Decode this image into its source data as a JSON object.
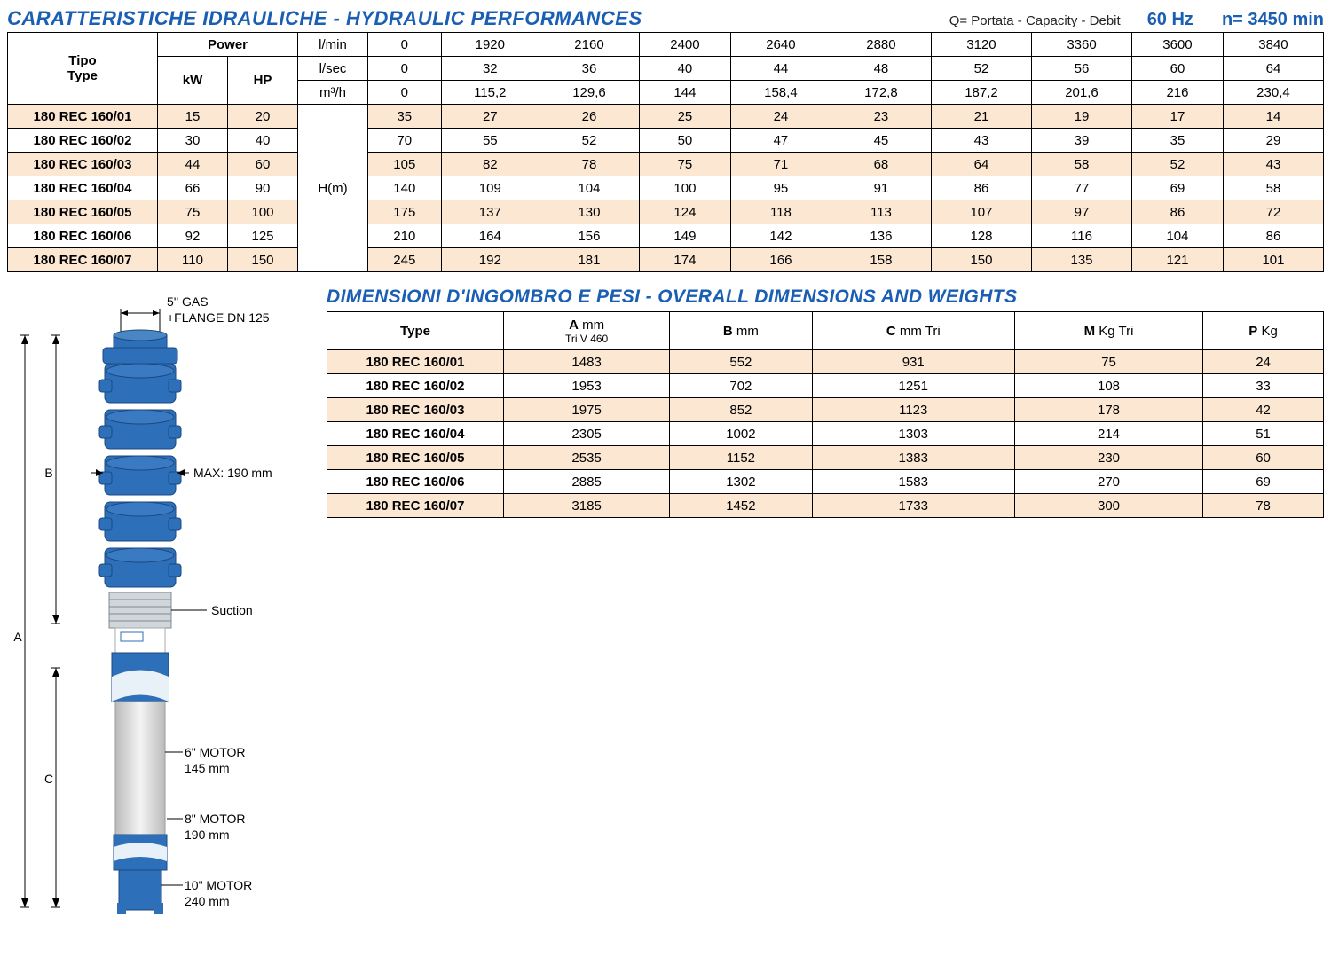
{
  "colors": {
    "accent": "#1a5fb4",
    "row_alt": "#fbe7d2",
    "border": "#000000",
    "pump_body": "#2d6fb8",
    "pump_light": "#e8f0f8",
    "pump_metal": "#d9d9d9"
  },
  "header1": {
    "title": "CARATTERISTICHE IDRAULICHE - HYDRAULIC PERFORMANCES",
    "q_note": "Q= Portata - Capacity - Debit",
    "hz": "60 Hz",
    "rpm": "n= 3450 min"
  },
  "hydr_table": {
    "type_hdr_it": "Tipo",
    "type_hdr_en": "Type",
    "power_hdr": "Power",
    "kw_hdr": "kW",
    "hp_hdr": "HP",
    "unit_rows": [
      {
        "label": "l/min",
        "values": [
          "0",
          "1920",
          "2160",
          "2400",
          "2640",
          "2880",
          "3120",
          "3360",
          "3600",
          "3840"
        ]
      },
      {
        "label": "l/sec",
        "values": [
          "0",
          "32",
          "36",
          "40",
          "44",
          "48",
          "52",
          "56",
          "60",
          "64"
        ]
      },
      {
        "label": "m³/h",
        "values": [
          "0",
          "115,2",
          "129,6",
          "144",
          "158,4",
          "172,8",
          "187,2",
          "201,6",
          "216",
          "230,4"
        ]
      }
    ],
    "hm_label": "H(m)",
    "rows": [
      {
        "type": "180 REC 160/01",
        "kw": "15",
        "hp": "20",
        "vals": [
          "35",
          "27",
          "26",
          "25",
          "24",
          "23",
          "21",
          "19",
          "17",
          "14"
        ],
        "alt": true
      },
      {
        "type": "180 REC 160/02",
        "kw": "30",
        "hp": "40",
        "vals": [
          "70",
          "55",
          "52",
          "50",
          "47",
          "45",
          "43",
          "39",
          "35",
          "29"
        ],
        "alt": false
      },
      {
        "type": "180 REC 160/03",
        "kw": "44",
        "hp": "60",
        "vals": [
          "105",
          "82",
          "78",
          "75",
          "71",
          "68",
          "64",
          "58",
          "52",
          "43"
        ],
        "alt": true
      },
      {
        "type": "180 REC 160/04",
        "kw": "66",
        "hp": "90",
        "vals": [
          "140",
          "109",
          "104",
          "100",
          "95",
          "91",
          "86",
          "77",
          "69",
          "58"
        ],
        "alt": false
      },
      {
        "type": "180 REC 160/05",
        "kw": "75",
        "hp": "100",
        "vals": [
          "175",
          "137",
          "130",
          "124",
          "118",
          "113",
          "107",
          "97",
          "86",
          "72"
        ],
        "alt": true
      },
      {
        "type": "180 REC 160/06",
        "kw": "92",
        "hp": "125",
        "vals": [
          "210",
          "164",
          "156",
          "149",
          "142",
          "136",
          "128",
          "116",
          "104",
          "86"
        ],
        "alt": false
      },
      {
        "type": "180 REC 160/07",
        "kw": "110",
        "hp": "150",
        "vals": [
          "245",
          "192",
          "181",
          "174",
          "166",
          "158",
          "150",
          "135",
          "121",
          "101"
        ],
        "alt": true
      }
    ]
  },
  "header2": "DIMENSIONI D'INGOMBRO E PESI - OVERALL DIMENSIONS AND WEIGHTS",
  "dim_table": {
    "cols": [
      {
        "main": "Type",
        "sub": ""
      },
      {
        "main": "A",
        "unit": "mm",
        "sub": "Tri V 460"
      },
      {
        "main": "B",
        "unit": "mm",
        "sub": ""
      },
      {
        "main": "C",
        "unit": "mm Tri",
        "sub": ""
      },
      {
        "main": "M",
        "unit": "Kg Tri",
        "sub": ""
      },
      {
        "main": "P",
        "unit": "Kg",
        "sub": ""
      }
    ],
    "rows": [
      {
        "cells": [
          "180 REC 160/01",
          "1483",
          "552",
          "931",
          "75",
          "24"
        ],
        "alt": true
      },
      {
        "cells": [
          "180 REC 160/02",
          "1953",
          "702",
          "1251",
          "108",
          "33"
        ],
        "alt": false
      },
      {
        "cells": [
          "180 REC 160/03",
          "1975",
          "852",
          "1123",
          "178",
          "42"
        ],
        "alt": true
      },
      {
        "cells": [
          "180 REC 160/04",
          "2305",
          "1002",
          "1303",
          "214",
          "51"
        ],
        "alt": false
      },
      {
        "cells": [
          "180 REC 160/05",
          "2535",
          "1152",
          "1383",
          "230",
          "60"
        ],
        "alt": true
      },
      {
        "cells": [
          "180 REC 160/06",
          "2885",
          "1302",
          "1583",
          "270",
          "69"
        ],
        "alt": false
      },
      {
        "cells": [
          "180 REC 160/07",
          "3185",
          "1452",
          "1733",
          "300",
          "78"
        ],
        "alt": true
      }
    ]
  },
  "diagram": {
    "gas": "5'' GAS",
    "flange": "+FLANGE DN 125",
    "max": "MAX: 190 mm",
    "suction": "Suction",
    "motor6": "6\" MOTOR",
    "motor6_d": "145 mm",
    "motor8": "8\" MOTOR",
    "motor8_d": "190 mm",
    "motor10": "10\" MOTOR",
    "motor10_d": "240 mm",
    "A": "A",
    "B": "B",
    "C": "C"
  }
}
